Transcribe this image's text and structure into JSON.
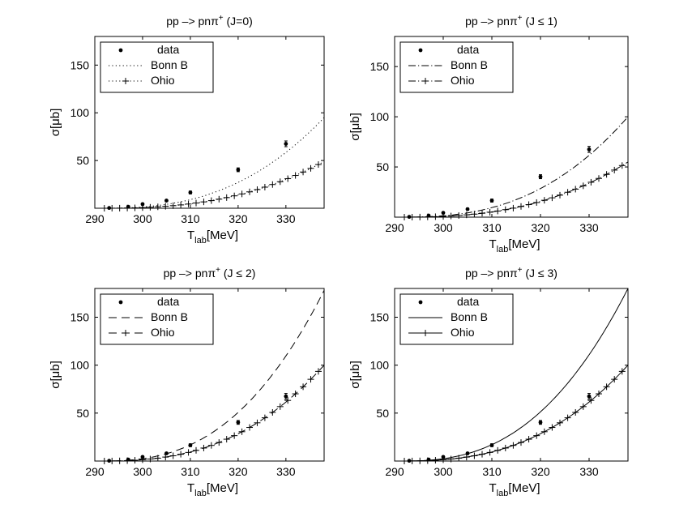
{
  "chart_data": [
    {
      "type": "line",
      "title_main": "pp –> pnπ",
      "title_sup": "+",
      "title_suffix": " (J=0)",
      "xlabel_main": "T",
      "xlabel_sub": "lab",
      "xlabel_unit": "[MeV]",
      "ylabel": "σ[μb]",
      "xlim": [
        290,
        338
      ],
      "ylim": [
        0,
        180
      ],
      "xticks": [
        290,
        300,
        310,
        320,
        330
      ],
      "yticks": [
        50,
        100,
        150
      ],
      "legend": [
        "data",
        "Bonn B",
        "Ohio"
      ],
      "data_points": [
        [
          293,
          0.3
        ],
        [
          297,
          1.6
        ],
        [
          300,
          4.3
        ],
        [
          305,
          8
        ],
        [
          310,
          16.5
        ],
        [
          320,
          40.3
        ],
        [
          330,
          67.5
        ]
      ],
      "data_errors": [
        0.5,
        0.8,
        1,
        1,
        1.5,
        2,
        3
      ],
      "bonn_end": 95,
      "ohio_end": 49
    },
    {
      "type": "line",
      "title_main": "pp –> pnπ",
      "title_sup": "+",
      "title_suffix": " (J ≤ 1)",
      "xlabel_main": "T",
      "xlabel_sub": "lab",
      "xlabel_unit": "[MeV]",
      "ylabel": "σ[μb]",
      "xlim": [
        290,
        338
      ],
      "ylim": [
        0,
        180
      ],
      "xticks": [
        290,
        300,
        310,
        320,
        330
      ],
      "yticks": [
        50,
        100,
        150
      ],
      "legend": [
        "data",
        "Bonn B",
        "Ohio"
      ],
      "data_points": [
        [
          293,
          0.3
        ],
        [
          297,
          1.6
        ],
        [
          300,
          4.3
        ],
        [
          305,
          8
        ],
        [
          310,
          16.5
        ],
        [
          320,
          40.3
        ],
        [
          330,
          67.5
        ]
      ],
      "data_errors": [
        0.5,
        0.8,
        1,
        1,
        1.5,
        2,
        3
      ],
      "bonn_end": 100,
      "ohio_end": 55
    },
    {
      "type": "line",
      "title_main": "pp –> pnπ",
      "title_sup": "+",
      "title_suffix": " (J ≤ 2)",
      "xlabel_main": "T",
      "xlabel_sub": "lab",
      "xlabel_unit": "[MeV]",
      "ylabel": "σ[μb]",
      "xlim": [
        290,
        338
      ],
      "ylim": [
        0,
        180
      ],
      "xticks": [
        290,
        300,
        310,
        320,
        330
      ],
      "yticks": [
        50,
        100,
        150
      ],
      "legend": [
        "data",
        "Bonn B",
        "Ohio"
      ],
      "data_points": [
        [
          293,
          0.3
        ],
        [
          297,
          1.6
        ],
        [
          300,
          4.3
        ],
        [
          305,
          8
        ],
        [
          310,
          16.5
        ],
        [
          320,
          40.3
        ],
        [
          330,
          67.5
        ]
      ],
      "data_errors": [
        0.5,
        0.8,
        1,
        1,
        1.5,
        2,
        3
      ],
      "bonn_end": 178,
      "ohio_end": 100
    },
    {
      "type": "line",
      "title_main": "pp –> pnπ",
      "title_sup": "+",
      "title_suffix": " (J ≤ 3)",
      "xlabel_main": "T",
      "xlabel_sub": "lab",
      "xlabel_unit": "[MeV]",
      "ylabel": "σ[μb]",
      "xlim": [
        290,
        338
      ],
      "ylim": [
        0,
        180
      ],
      "xticks": [
        290,
        300,
        310,
        320,
        330
      ],
      "yticks": [
        50,
        100,
        150
      ],
      "legend": [
        "data",
        "Bonn B",
        "Ohio"
      ],
      "data_points": [
        [
          293,
          0.3
        ],
        [
          297,
          1.6
        ],
        [
          300,
          4.3
        ],
        [
          305,
          8
        ],
        [
          310,
          16.5
        ],
        [
          320,
          40.3
        ],
        [
          330,
          67.5
        ]
      ],
      "data_errors": [
        0.5,
        0.8,
        1,
        1,
        1.5,
        2,
        3
      ],
      "bonn_end": 180,
      "ohio_end": 100
    }
  ]
}
